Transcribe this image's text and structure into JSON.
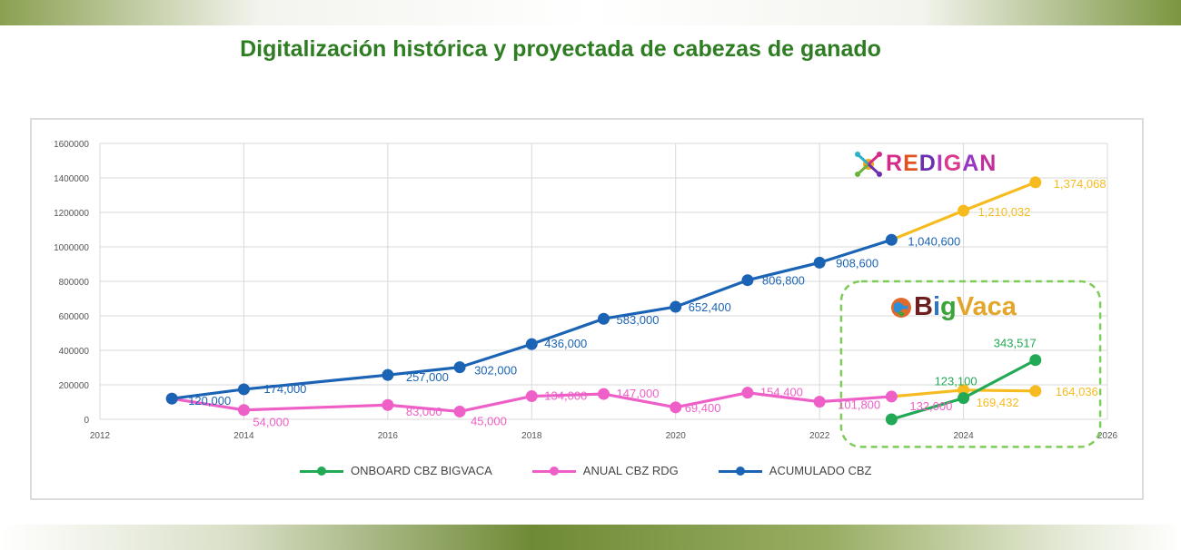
{
  "page_title": "Digitalización histórica y proyectada de cabezas de ganado",
  "colors": {
    "title": "#2e7d22",
    "acumulado": "#1b63b5",
    "anual": "#ee5fc8",
    "onboard": "#22a955",
    "projection": "#f6bb1e",
    "bigvaca_box": "#7ecb58"
  },
  "logos": {
    "redigan": {
      "icon": "redigan-star-icon",
      "text": "REDIGAN"
    },
    "bigvaca": {
      "icon": "globe-icon",
      "text": "BigVaca"
    }
  },
  "chart_data": {
    "type": "line",
    "title": "",
    "xlabel": "",
    "ylabel": "",
    "xlim": [
      2012,
      2026
    ],
    "ylim": [
      0,
      1600000
    ],
    "x_ticks": [
      2012,
      2014,
      2016,
      2018,
      2020,
      2022,
      2024,
      2026
    ],
    "y_ticks": [
      0,
      200000,
      400000,
      600000,
      800000,
      1000000,
      1200000,
      1400000,
      1600000
    ],
    "y_tick_labels": [
      "0",
      "200000",
      "400000",
      "600000",
      "800000",
      "1000000",
      "1200000",
      "1400000",
      "1600000"
    ],
    "grid": true,
    "legend_position": "bottom",
    "series": [
      {
        "name": "ONBOARD CBZ BIGVACA",
        "color": "#22a955",
        "x": [
          2023,
          2024,
          2025
        ],
        "values": [
          0,
          123100,
          343517
        ],
        "labels": [
          null,
          "123,100",
          "343,517"
        ]
      },
      {
        "name": "ANUAL CBZ RDG",
        "color": "#ee5fc8",
        "x": [
          2013,
          2014,
          2016,
          2017,
          2018,
          2019,
          2020,
          2021,
          2022,
          2023
        ],
        "values": [
          120000,
          54000,
          83000,
          45000,
          134000,
          147000,
          69400,
          154400,
          101800,
          132000
        ],
        "labels": [
          null,
          "54,000",
          "83,000",
          "45,000",
          "134,000",
          "147,000",
          "69,400",
          "154,400",
          "101,800",
          "132,000"
        ]
      },
      {
        "name": "ACUMULADO CBZ",
        "color": "#1b63b5",
        "x": [
          2013,
          2014,
          2016,
          2017,
          2018,
          2019,
          2020,
          2021,
          2022,
          2023
        ],
        "values": [
          120000,
          174000,
          257000,
          302000,
          436000,
          583000,
          652400,
          806800,
          908600,
          1040600
        ],
        "labels": [
          "120,000",
          "174,000",
          "257,000",
          "302,000",
          "436,000",
          "583,000",
          "652,400",
          "806,800",
          "908,600",
          "1,040,600"
        ]
      }
    ],
    "projections": [
      {
        "of": "ACUMULADO CBZ",
        "color": "#f6bb1e",
        "x": [
          2023,
          2024,
          2025
        ],
        "values": [
          1040600,
          1210032,
          1374068
        ],
        "labels": [
          null,
          "1,210,032",
          "1,374,068"
        ]
      },
      {
        "of": "ANUAL CBZ RDG",
        "color": "#f6bb1e",
        "x": [
          2023,
          2024,
          2025
        ],
        "values": [
          132000,
          169432,
          164036
        ],
        "labels": [
          null,
          "169,432",
          "164,036"
        ]
      }
    ]
  }
}
